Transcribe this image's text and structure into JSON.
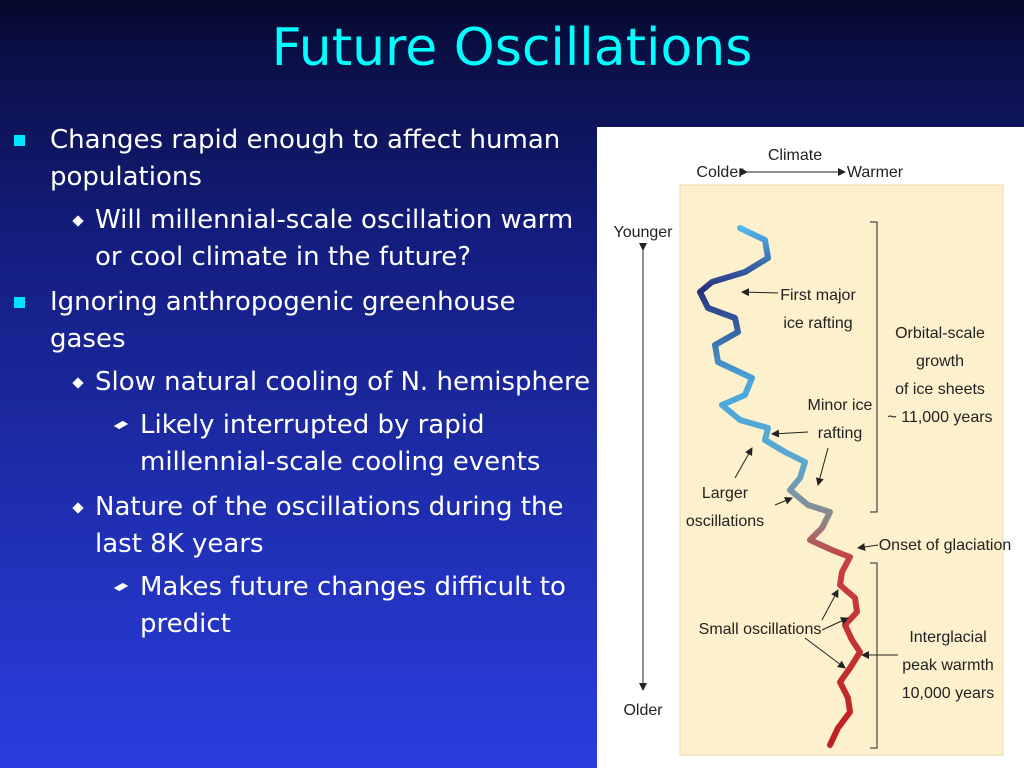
{
  "title": "Future Oscillations",
  "bullets": [
    {
      "text": "Changes rapid enough to affect human populations",
      "children": [
        {
          "text": "Will millennial-scale oscillation warm or cool climate in the future?",
          "children": []
        }
      ]
    },
    {
      "text": "Ignoring anthropogenic greenhouse gases",
      "children": [
        {
          "text": "Slow natural cooling of N. hemisphere",
          "children": [
            {
              "text": "Likely interrupted by rapid millennial-scale cooling events"
            }
          ]
        },
        {
          "text": "Nature of the oscillations during the last 8K years",
          "children": [
            {
              "text": "Makes future changes difficult to predict"
            }
          ]
        }
      ]
    }
  ],
  "figure": {
    "climate": "Climate",
    "colder": "Colder",
    "warmer": "Warmer",
    "younger": "Younger",
    "older": "Older",
    "first_major": [
      "First major",
      "ice rafting"
    ],
    "minor_ice": [
      "Minor ice",
      "rafting"
    ],
    "larger": [
      "Larger",
      "oscillations"
    ],
    "onset": "Onset of glaciation",
    "small": "Small oscillations",
    "orbital": [
      "Orbital-scale",
      "growth",
      "of ice sheets",
      "~ 11,000 years"
    ],
    "interglacial": [
      "Interglacial",
      "peak warmth",
      "10,000 years"
    ]
  }
}
